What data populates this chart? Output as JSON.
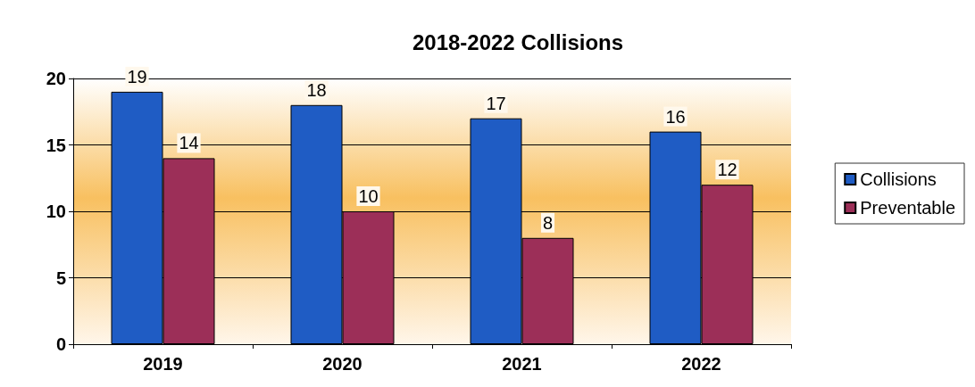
{
  "chart_data": {
    "type": "bar",
    "title": "2018-2022 Collisions",
    "categories": [
      "2019",
      "2020",
      "2021",
      "2022"
    ],
    "series": [
      {
        "name": "Collisions",
        "color": "#1f5cc4",
        "values": [
          19,
          18,
          17,
          16
        ]
      },
      {
        "name": "Preventable",
        "color": "#9c2f58",
        "values": [
          14,
          10,
          8,
          12
        ]
      }
    ],
    "ylim": [
      0,
      20
    ],
    "yticks": [
      0,
      5,
      10,
      15,
      20
    ],
    "grid": "y",
    "legend": "right",
    "data_labels": true
  }
}
